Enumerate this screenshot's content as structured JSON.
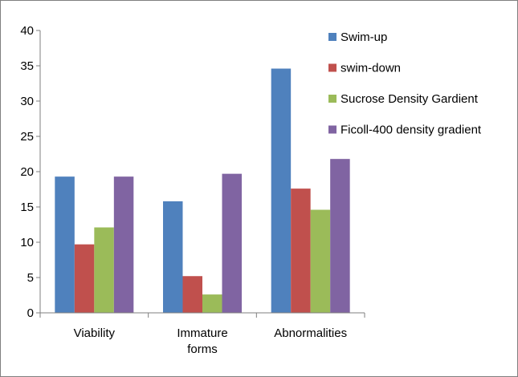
{
  "chart_data": {
    "type": "bar",
    "categories": [
      [
        "Viability"
      ],
      [
        "Immature",
        "forms"
      ],
      [
        "Abnormalities"
      ]
    ],
    "series": [
      {
        "name": "Swim-up",
        "color": "#4f81bd",
        "values": [
          19.3,
          15.8,
          34.6
        ]
      },
      {
        "name": "swim-down",
        "color": "#c0504d",
        "values": [
          9.7,
          5.2,
          17.6
        ]
      },
      {
        "name": "Sucrose Density Gardient",
        "color": "#9bbb59",
        "values": [
          12.1,
          2.6,
          14.6
        ]
      },
      {
        "name": "Ficoll-400 density gradient",
        "color": "#8064a2",
        "values": [
          19.3,
          19.7,
          21.8
        ]
      }
    ],
    "yticks": [
      "0",
      "5",
      "10",
      "15",
      "20",
      "25",
      "30",
      "35",
      "40"
    ],
    "ylim": [
      0,
      40
    ],
    "grid": false,
    "legend_position": "top-right"
  }
}
